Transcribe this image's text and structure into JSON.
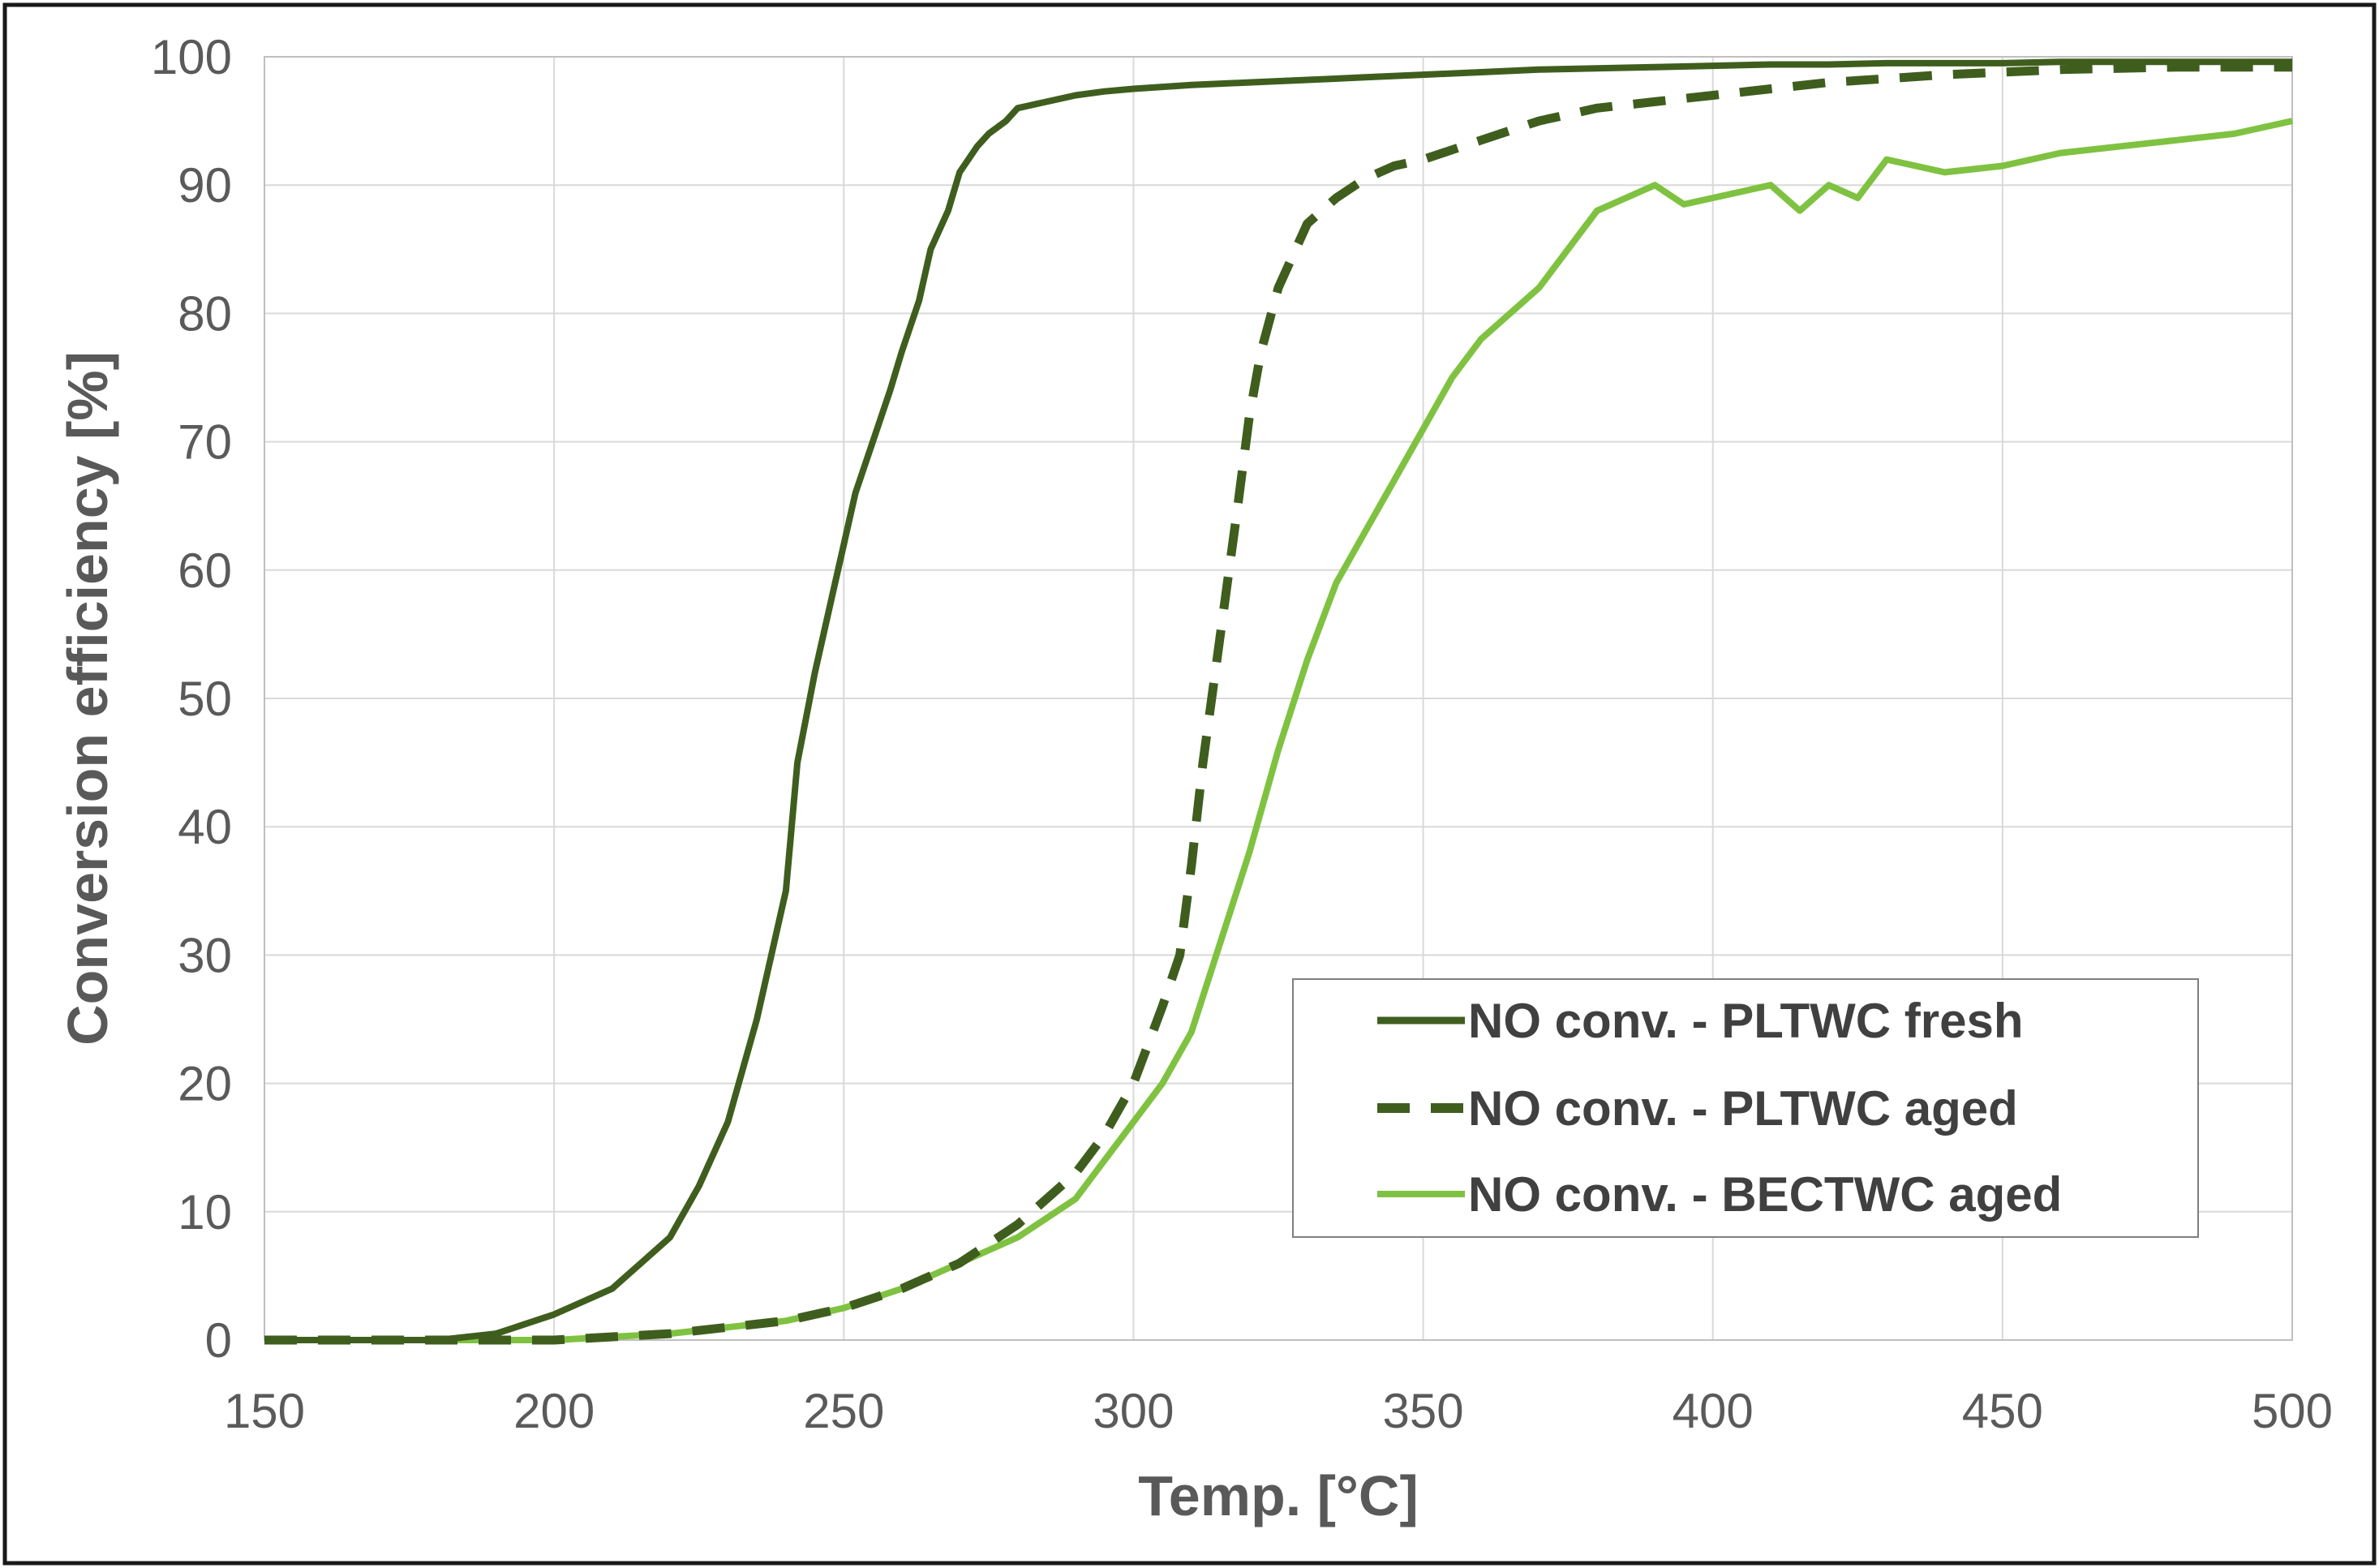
{
  "colors": {
    "fresh": "#3f5e1e",
    "pltwc_aged": "#3f5e1e",
    "bectwc_aged": "#7fc241",
    "grid": "#d9d9d9",
    "text": "#595959"
  },
  "chart_data": {
    "type": "line",
    "title": "",
    "xlabel": "Temp. [°C]",
    "ylabel": "Conversion efficiency [%]",
    "xlim": [
      150,
      500
    ],
    "ylim": [
      0,
      100
    ],
    "xticks": [
      150,
      200,
      250,
      300,
      350,
      400,
      450,
      500
    ],
    "yticks": [
      0,
      10,
      20,
      30,
      40,
      50,
      60,
      70,
      80,
      90,
      100
    ],
    "grid": true,
    "legend_position": "bottom-right",
    "series": [
      {
        "name": "NO conv. - PLTWC fresh",
        "style": "solid",
        "color_key": "fresh",
        "x": [
          150,
          160,
          170,
          180,
          190,
          200,
          205,
          210,
          215,
          220,
          225,
          230,
          235,
          240,
          242,
          245,
          248,
          250,
          252,
          255,
          258,
          260,
          263,
          265,
          268,
          270,
          273,
          275,
          278,
          280,
          285,
          290,
          295,
          300,
          310,
          320,
          330,
          340,
          350,
          360,
          370,
          380,
          390,
          400,
          410,
          420,
          430,
          440,
          450,
          460,
          470,
          480,
          490,
          500
        ],
        "y": [
          0,
          0,
          0,
          0,
          0.5,
          2,
          3,
          4,
          6,
          8,
          12,
          17,
          25,
          35,
          45,
          52,
          58,
          62,
          66,
          70,
          74,
          77,
          81,
          85,
          88,
          91,
          93,
          94,
          95,
          96,
          96.5,
          97,
          97.3,
          97.5,
          97.8,
          98,
          98.2,
          98.4,
          98.6,
          98.8,
          99,
          99.1,
          99.2,
          99.3,
          99.4,
          99.4,
          99.5,
          99.5,
          99.5,
          99.6,
          99.6,
          99.6,
          99.6,
          99.6
        ]
      },
      {
        "name": "NO conv. - PLTWC aged",
        "style": "dashed",
        "color_key": "pltwc_aged",
        "x": [
          150,
          200,
          220,
          240,
          250,
          260,
          270,
          280,
          290,
          295,
          300,
          305,
          308,
          310,
          312,
          315,
          318,
          320,
          322,
          325,
          328,
          330,
          335,
          340,
          345,
          350,
          360,
          370,
          380,
          390,
          400,
          410,
          420,
          430,
          440,
          450,
          460,
          470,
          480,
          490,
          500
        ],
        "y": [
          0,
          0,
          0.5,
          1.5,
          2.5,
          4,
          6,
          9,
          13,
          16,
          20,
          26,
          30,
          37,
          45,
          55,
          65,
          72,
          77,
          82,
          85,
          87,
          89,
          90.5,
          91.5,
          92,
          93.5,
          95,
          96,
          96.5,
          97,
          97.5,
          98,
          98.3,
          98.6,
          98.8,
          99,
          99.1,
          99.2,
          99.2,
          99.2
        ]
      },
      {
        "name": "NO conv. - BECTWC aged",
        "style": "solid",
        "color_key": "bectwc_aged",
        "x": [
          150,
          200,
          220,
          240,
          250,
          260,
          270,
          280,
          290,
          295,
          300,
          305,
          310,
          315,
          320,
          325,
          330,
          335,
          340,
          345,
          350,
          355,
          360,
          365,
          370,
          375,
          380,
          385,
          390,
          395,
          400,
          405,
          410,
          415,
          420,
          425,
          430,
          440,
          450,
          460,
          470,
          480,
          490,
          500
        ],
        "y": [
          0,
          0,
          0.5,
          1.5,
          2.5,
          4,
          6,
          8,
          11,
          14,
          17,
          20,
          24,
          31,
          38,
          46,
          53,
          59,
          63,
          67,
          71,
          75,
          78,
          80,
          82,
          85,
          88,
          89,
          90,
          88.5,
          89,
          89.5,
          90,
          88,
          90,
          89,
          92,
          91,
          91.5,
          92.5,
          93,
          93.5,
          94,
          95
        ]
      }
    ]
  }
}
